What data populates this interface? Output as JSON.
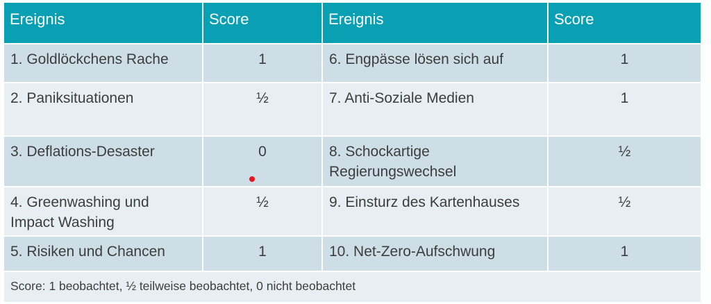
{
  "table": {
    "columns": {
      "left_event_header": "Ereignis",
      "left_score_header": "Score",
      "right_event_header": "Ereignis",
      "right_score_header": "Score"
    },
    "rows": [
      {
        "left_event": "1. Goldlöckchens Rache",
        "left_score": "1",
        "right_event": "6. Engpässe lösen sich auf",
        "right_score": "1"
      },
      {
        "left_event": "2. Paniksituationen",
        "left_score": "½",
        "right_event": "7. Anti-Soziale Medien",
        "right_score": "1"
      },
      {
        "left_event": "3. Deflations-Desaster",
        "left_score": "0",
        "right_event": "8. Schockartige Regierungswechsel",
        "right_score": "½"
      },
      {
        "left_event": "4. Greenwashing und Impact Washing",
        "left_score": "½",
        "right_event": "9. Einsturz des Kartenhauses",
        "right_score": "½"
      },
      {
        "left_event": "5. Risiken und Chancen",
        "left_score": "1",
        "right_event": "10. Net-Zero-Aufschwung",
        "right_score": "1"
      }
    ],
    "footer_legend": "Score: 1 beobachtet, ½ teilweise beobachtet, 0 nicht beobachtet"
  },
  "colors": {
    "header_bg": "#09a0b4",
    "row_dark_bg": "#cddee6",
    "row_light_bg": "#e8eff3",
    "text": "#3d3d3d",
    "header_text": "#ffffff",
    "annotation_dot": "#e8131c"
  }
}
